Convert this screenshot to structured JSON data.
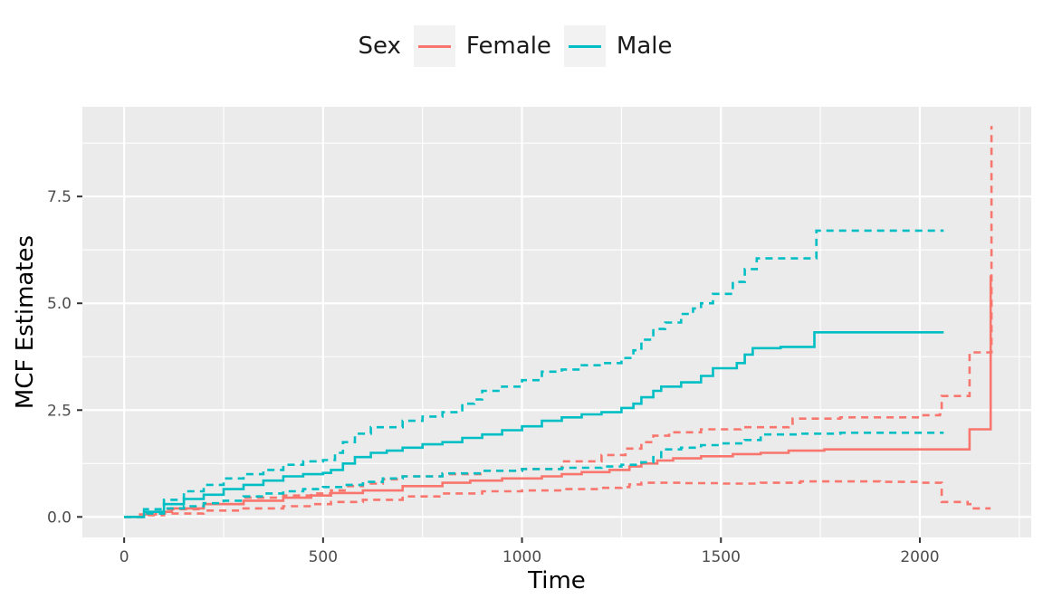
{
  "chart_data": {
    "type": "line",
    "title": "",
    "xlabel": "Time",
    "ylabel": "MCF Estimates",
    "xlim": [
      -105,
      2280
    ],
    "ylim": [
      -0.48,
      9.6
    ],
    "x_ticks": [
      0,
      500,
      1000,
      1500,
      2000
    ],
    "x_tick_labels": [
      "0",
      "500",
      "1000",
      "1500",
      "2000"
    ],
    "y_ticks": [
      0.0,
      2.5,
      5.0,
      7.5
    ],
    "y_tick_labels": [
      "0.0",
      "2.5",
      "5.0",
      "7.5"
    ],
    "grid": true,
    "legend": {
      "title": "Sex",
      "position": "top",
      "entries": [
        {
          "label": "Female",
          "color": "#F8766D"
        },
        {
          "label": "Male",
          "color": "#00BFC4"
        }
      ]
    },
    "series": [
      {
        "name": "Female",
        "color": "#F8766D",
        "line_type": "solid",
        "points": [
          [
            0,
            0
          ],
          [
            40,
            0.06
          ],
          [
            80,
            0.12
          ],
          [
            120,
            0.2
          ],
          [
            200,
            0.3
          ],
          [
            300,
            0.38
          ],
          [
            400,
            0.45
          ],
          [
            470,
            0.5
          ],
          [
            520,
            0.56
          ],
          [
            600,
            0.62
          ],
          [
            700,
            0.72
          ],
          [
            800,
            0.8
          ],
          [
            870,
            0.85
          ],
          [
            950,
            0.9
          ],
          [
            1050,
            0.95
          ],
          [
            1100,
            1.0
          ],
          [
            1150,
            1.05
          ],
          [
            1220,
            1.1
          ],
          [
            1270,
            1.18
          ],
          [
            1300,
            1.25
          ],
          [
            1340,
            1.32
          ],
          [
            1380,
            1.37
          ],
          [
            1450,
            1.42
          ],
          [
            1530,
            1.47
          ],
          [
            1600,
            1.5
          ],
          [
            1670,
            1.55
          ],
          [
            1760,
            1.58
          ],
          [
            2000,
            1.58
          ],
          [
            2120,
            1.58
          ],
          [
            2125,
            2.05
          ],
          [
            2175,
            2.05
          ],
          [
            2178,
            5.65
          ]
        ]
      },
      {
        "name": "Female",
        "color": "#F8766D",
        "line_type": "dashed",
        "points": [
          [
            0,
            0
          ],
          [
            50,
            0.08
          ],
          [
            100,
            0.18
          ],
          [
            200,
            0.3
          ],
          [
            300,
            0.45
          ],
          [
            400,
            0.5
          ],
          [
            470,
            0.55
          ],
          [
            520,
            0.62
          ],
          [
            560,
            0.72
          ],
          [
            600,
            0.78
          ],
          [
            650,
            0.88
          ],
          [
            700,
            0.95
          ],
          [
            800,
            1.0
          ],
          [
            900,
            1.08
          ],
          [
            1000,
            1.12
          ],
          [
            1100,
            1.3
          ],
          [
            1200,
            1.45
          ],
          [
            1260,
            1.6
          ],
          [
            1300,
            1.75
          ],
          [
            1330,
            1.9
          ],
          [
            1370,
            1.98
          ],
          [
            1450,
            2.05
          ],
          [
            1550,
            2.1
          ],
          [
            1670,
            2.15
          ],
          [
            1680,
            2.3
          ],
          [
            1800,
            2.33
          ],
          [
            2000,
            2.38
          ],
          [
            2050,
            2.4
          ],
          [
            2055,
            2.83
          ],
          [
            2120,
            2.83
          ],
          [
            2125,
            3.85
          ],
          [
            2175,
            3.85
          ],
          [
            2180,
            9.15
          ]
        ]
      },
      {
        "name": "Female",
        "color": "#F8766D",
        "line_type": "dashed",
        "points": [
          [
            0,
            0
          ],
          [
            50,
            0.04
          ],
          [
            100,
            0.08
          ],
          [
            200,
            0.15
          ],
          [
            300,
            0.2
          ],
          [
            400,
            0.25
          ],
          [
            470,
            0.3
          ],
          [
            520,
            0.35
          ],
          [
            600,
            0.4
          ],
          [
            700,
            0.48
          ],
          [
            800,
            0.55
          ],
          [
            900,
            0.6
          ],
          [
            1000,
            0.62
          ],
          [
            1100,
            0.65
          ],
          [
            1200,
            0.68
          ],
          [
            1250,
            0.7
          ],
          [
            1270,
            0.76
          ],
          [
            1300,
            0.8
          ],
          [
            1400,
            0.79
          ],
          [
            1500,
            0.78
          ],
          [
            1600,
            0.8
          ],
          [
            1700,
            0.83
          ],
          [
            1800,
            0.83
          ],
          [
            1900,
            0.82
          ],
          [
            2000,
            0.8
          ],
          [
            2050,
            0.8
          ],
          [
            2055,
            0.35
          ],
          [
            2120,
            0.3
          ],
          [
            2130,
            0.2
          ],
          [
            2178,
            0.2
          ]
        ]
      },
      {
        "name": "Male",
        "color": "#00BFC4",
        "line_type": "solid",
        "points": [
          [
            0,
            0
          ],
          [
            50,
            0.12
          ],
          [
            100,
            0.3
          ],
          [
            150,
            0.42
          ],
          [
            200,
            0.52
          ],
          [
            250,
            0.65
          ],
          [
            300,
            0.75
          ],
          [
            350,
            0.85
          ],
          [
            400,
            0.95
          ],
          [
            450,
            1.0
          ],
          [
            500,
            1.03
          ],
          [
            520,
            1.1
          ],
          [
            550,
            1.25
          ],
          [
            580,
            1.4
          ],
          [
            620,
            1.5
          ],
          [
            660,
            1.55
          ],
          [
            700,
            1.62
          ],
          [
            750,
            1.7
          ],
          [
            800,
            1.75
          ],
          [
            850,
            1.85
          ],
          [
            900,
            1.93
          ],
          [
            950,
            2.03
          ],
          [
            1000,
            2.12
          ],
          [
            1050,
            2.25
          ],
          [
            1100,
            2.33
          ],
          [
            1150,
            2.4
          ],
          [
            1200,
            2.45
          ],
          [
            1250,
            2.55
          ],
          [
            1280,
            2.65
          ],
          [
            1300,
            2.8
          ],
          [
            1330,
            2.95
          ],
          [
            1350,
            3.05
          ],
          [
            1400,
            3.15
          ],
          [
            1450,
            3.3
          ],
          [
            1480,
            3.48
          ],
          [
            1540,
            3.6
          ],
          [
            1560,
            3.8
          ],
          [
            1580,
            3.95
          ],
          [
            1650,
            3.98
          ],
          [
            1730,
            3.98
          ],
          [
            1735,
            4.32
          ],
          [
            2060,
            4.32
          ]
        ]
      },
      {
        "name": "Male",
        "color": "#00BFC4",
        "line_type": "dashed",
        "points": [
          [
            0,
            0
          ],
          [
            50,
            0.18
          ],
          [
            100,
            0.4
          ],
          [
            150,
            0.6
          ],
          [
            200,
            0.75
          ],
          [
            250,
            0.9
          ],
          [
            300,
            1.0
          ],
          [
            350,
            1.1
          ],
          [
            400,
            1.22
          ],
          [
            450,
            1.3
          ],
          [
            500,
            1.33
          ],
          [
            530,
            1.5
          ],
          [
            550,
            1.75
          ],
          [
            580,
            1.95
          ],
          [
            620,
            2.1
          ],
          [
            700,
            2.25
          ],
          [
            750,
            2.35
          ],
          [
            800,
            2.45
          ],
          [
            850,
            2.65
          ],
          [
            880,
            2.75
          ],
          [
            900,
            2.95
          ],
          [
            950,
            3.05
          ],
          [
            1000,
            3.2
          ],
          [
            1050,
            3.4
          ],
          [
            1100,
            3.45
          ],
          [
            1150,
            3.55
          ],
          [
            1200,
            3.6
          ],
          [
            1250,
            3.72
          ],
          [
            1280,
            3.9
          ],
          [
            1300,
            4.15
          ],
          [
            1330,
            4.4
          ],
          [
            1360,
            4.55
          ],
          [
            1400,
            4.75
          ],
          [
            1430,
            4.88
          ],
          [
            1450,
            5.0
          ],
          [
            1480,
            5.22
          ],
          [
            1530,
            5.5
          ],
          [
            1560,
            5.8
          ],
          [
            1590,
            6.05
          ],
          [
            1700,
            6.05
          ],
          [
            1735,
            6.05
          ],
          [
            1740,
            6.7
          ],
          [
            2060,
            6.7
          ]
        ]
      },
      {
        "name": "Male",
        "color": "#00BFC4",
        "line_type": "dashed",
        "points": [
          [
            0,
            0
          ],
          [
            50,
            0.08
          ],
          [
            100,
            0.2
          ],
          [
            150,
            0.25
          ],
          [
            200,
            0.32
          ],
          [
            250,
            0.38
          ],
          [
            300,
            0.48
          ],
          [
            350,
            0.55
          ],
          [
            400,
            0.6
          ],
          [
            450,
            0.65
          ],
          [
            500,
            0.7
          ],
          [
            550,
            0.75
          ],
          [
            600,
            0.82
          ],
          [
            650,
            0.9
          ],
          [
            700,
            0.95
          ],
          [
            800,
            1.02
          ],
          [
            900,
            1.08
          ],
          [
            1000,
            1.12
          ],
          [
            1100,
            1.15
          ],
          [
            1200,
            1.18
          ],
          [
            1250,
            1.22
          ],
          [
            1300,
            1.28
          ],
          [
            1330,
            1.4
          ],
          [
            1350,
            1.58
          ],
          [
            1400,
            1.62
          ],
          [
            1450,
            1.68
          ],
          [
            1500,
            1.72
          ],
          [
            1560,
            1.8
          ],
          [
            1600,
            1.93
          ],
          [
            1700,
            1.95
          ],
          [
            1800,
            1.97
          ],
          [
            2000,
            1.97
          ],
          [
            2060,
            1.97
          ]
        ]
      }
    ]
  }
}
